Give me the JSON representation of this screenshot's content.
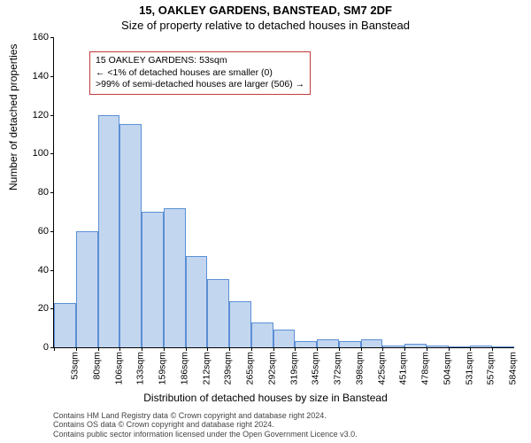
{
  "title_line1": "15, OAKLEY GARDENS, BANSTEAD, SM7 2DF",
  "title_line2": "Size of property relative to detached houses in Banstead",
  "y_axis_label": "Number of detached properties",
  "x_axis_label": "Distribution of detached houses by size in Banstead",
  "footnote_line1": "Contains HM Land Registry data © Crown copyright and database right 2024.",
  "footnote_line2": "Contains OS data © Crown copyright and database right 2024.",
  "footnote_line3": "Contains public sector information licensed under the Open Government Licence v3.0.",
  "annotation": {
    "line1": "15 OAKLEY GARDENS: 53sqm",
    "line2": "← <1% of detached houses are smaller (0)",
    "line3": ">99% of semi-detached houses are larger (506) →",
    "border_color": "#c43a3a"
  },
  "chart": {
    "type": "histogram",
    "ylim": [
      0,
      160
    ],
    "ytick_step": 20,
    "bar_fill": "#c3d6f0",
    "bar_stroke": "#5a8fd4",
    "background_color": "#ffffff",
    "categories": [
      "53sqm",
      "80sqm",
      "106sqm",
      "133sqm",
      "159sqm",
      "186sqm",
      "212sqm",
      "239sqm",
      "265sqm",
      "292sqm",
      "319sqm",
      "345sqm",
      "372sqm",
      "398sqm",
      "425sqm",
      "451sqm",
      "478sqm",
      "504sqm",
      "531sqm",
      "557sqm",
      "584sqm"
    ],
    "values": [
      23,
      60,
      120,
      115,
      70,
      72,
      47,
      35,
      24,
      13,
      9,
      3,
      4,
      3,
      4,
      1,
      2,
      1,
      0,
      1,
      0
    ],
    "label_fontsize": 12,
    "tick_fontsize": 11
  }
}
